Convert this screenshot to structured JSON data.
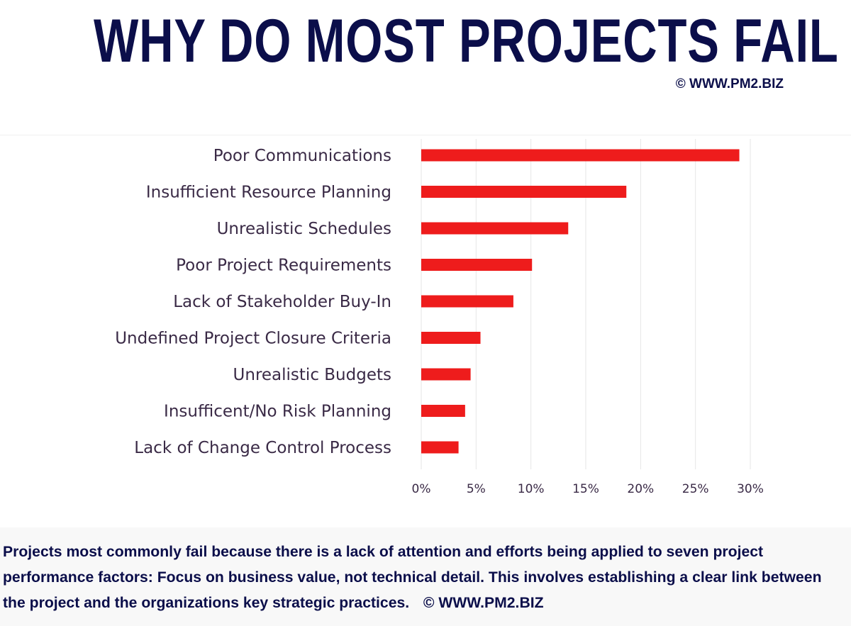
{
  "title": "WHY DO MOST PROJECTS FAIL",
  "copyright_top": "© WWW.PM2.BIZ",
  "chart_data": {
    "type": "bar",
    "orientation": "horizontal",
    "categories": [
      "Poor Communications",
      "Insufficient Resource Planning",
      "Unrealistic Schedules",
      "Poor Project Requirements",
      "Lack of Stakeholder Buy-In",
      "Undefined Project Closure Criteria",
      "Unrealistic Budgets",
      "Insufficent/No Risk Planning",
      "Lack of Change Control Process"
    ],
    "values": [
      29,
      18.7,
      13.4,
      10.1,
      8.4,
      5.4,
      4.5,
      4.0,
      3.4
    ],
    "xlim": [
      0,
      30
    ],
    "xticks": [
      "0%",
      "5%",
      "10%",
      "15%",
      "20%",
      "25%",
      "30%"
    ],
    "xtick_values": [
      0,
      5,
      10,
      15,
      20,
      25,
      30
    ],
    "bar_color": "#ee1c1c",
    "grid": "vertical",
    "legend": "none"
  },
  "footer": {
    "text": "Projects most commonly fail because there is a lack of attention and efforts being applied to seven project performance factors: Focus on business value, not technical detail. This involves establishing a clear link between the project and the organizations key strategic practices.",
    "copyright": "© WWW.PM2.BIZ"
  }
}
